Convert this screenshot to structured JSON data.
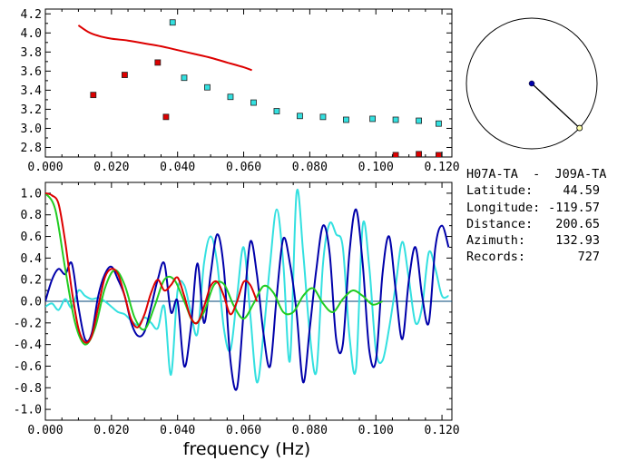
{
  "info": {
    "title": "H07A-TA  -  J09A-TA",
    "rows": [
      {
        "label": "Latitude:",
        "value": "44.59"
      },
      {
        "label": "Longitude:",
        "value": "-119.57"
      },
      {
        "label": "Distance:",
        "value": "200.65"
      },
      {
        "label": "Azimuth:",
        "value": "132.93"
      },
      {
        "label": "Records:",
        "value": "727"
      }
    ]
  },
  "colors": {
    "red": "#dd0000",
    "cyan": "#33e0e0",
    "blue": "#0000aa",
    "green": "#22cc22",
    "zero_line": "#004477"
  },
  "chart_data": [
    {
      "type": "scatter",
      "xlim": [
        0.0,
        0.123
      ],
      "ylim": [
        2.7,
        4.25
      ],
      "xticks": [
        "0.000",
        "0.020",
        "0.040",
        "0.060",
        "0.080",
        "0.100",
        "0.120"
      ],
      "yticks": [
        "2.8",
        "3.0",
        "3.2",
        "3.4",
        "3.6",
        "3.8",
        "4.0",
        "4.2"
      ],
      "series": [
        {
          "marker": "square",
          "color": "red",
          "x": [
            0.0145,
            0.024,
            0.034,
            0.0365,
            0.106,
            0.113,
            0.119
          ],
          "y": [
            3.35,
            3.56,
            3.69,
            3.12,
            2.72,
            2.73,
            2.72
          ]
        },
        {
          "marker": "square",
          "color": "cyan",
          "x": [
            0.0385,
            0.042,
            0.049,
            0.056,
            0.063,
            0.07,
            0.077,
            0.084,
            0.091,
            0.099,
            0.106,
            0.113,
            0.119
          ],
          "y": [
            4.11,
            3.53,
            3.43,
            3.33,
            3.27,
            3.18,
            3.13,
            3.12,
            3.09,
            3.1,
            3.09,
            3.08,
            3.05
          ]
        },
        {
          "marker": "line",
          "color": "red",
          "x": [
            0.01,
            0.013,
            0.016,
            0.02,
            0.025,
            0.03,
            0.035,
            0.04,
            0.045,
            0.05,
            0.055,
            0.06,
            0.0625
          ],
          "y": [
            4.08,
            4.01,
            3.97,
            3.94,
            3.92,
            3.89,
            3.86,
            3.82,
            3.78,
            3.74,
            3.69,
            3.64,
            3.61
          ]
        }
      ]
    },
    {
      "type": "line",
      "xlim": [
        0.0,
        0.123
      ],
      "ylim": [
        -1.1,
        1.1
      ],
      "xticks": [
        "0.000",
        "0.020",
        "0.040",
        "0.060",
        "0.080",
        "0.100",
        "0.120"
      ],
      "yticks": [
        "1.0",
        "0.8",
        "0.6",
        "0.4",
        "0.2",
        "0.0",
        "-0.2",
        "-0.4",
        "-0.6",
        "-0.8",
        "-1.0"
      ],
      "xlabel": "frequency (Hz)",
      "series": [
        {
          "color": "cyan",
          "x": [
            0.0,
            0.002,
            0.004,
            0.006,
            0.008,
            0.01,
            0.012,
            0.014,
            0.016,
            0.018,
            0.02,
            0.022,
            0.024,
            0.026,
            0.028,
            0.03,
            0.032,
            0.034,
            0.036,
            0.038,
            0.04,
            0.042,
            0.044,
            0.046,
            0.048,
            0.05,
            0.052,
            0.054,
            0.056,
            0.058,
            0.06,
            0.062,
            0.064,
            0.066,
            0.068,
            0.07,
            0.072,
            0.074,
            0.076,
            0.078,
            0.08,
            0.082,
            0.084,
            0.086,
            0.088,
            0.09,
            0.092,
            0.094,
            0.096,
            0.098,
            0.1,
            0.102,
            0.104,
            0.106,
            0.108,
            0.11,
            0.112,
            0.114,
            0.116,
            0.118,
            0.12,
            0.122
          ],
          "y": [
            -0.05,
            -0.02,
            -0.08,
            0.02,
            -0.06,
            0.1,
            0.05,
            0.02,
            0.03,
            0.0,
            -0.05,
            -0.1,
            -0.12,
            -0.18,
            -0.22,
            -0.15,
            -0.2,
            -0.25,
            -0.05,
            -0.68,
            0.1,
            0.15,
            -0.1,
            -0.3,
            0.35,
            0.6,
            0.35,
            -0.25,
            -0.45,
            0.05,
            0.5,
            -0.12,
            -0.75,
            -0.3,
            0.35,
            0.85,
            0.35,
            -0.55,
            1.0,
            0.45,
            -0.3,
            -0.65,
            0.35,
            0.72,
            0.62,
            0.5,
            -0.32,
            -0.62,
            0.7,
            0.32,
            -0.45,
            -0.55,
            -0.25,
            0.15,
            0.55,
            0.2,
            -0.2,
            -0.05,
            0.45,
            0.3,
            0.05,
            0.05
          ]
        },
        {
          "color": "blue",
          "x": [
            0.0,
            0.002,
            0.004,
            0.006,
            0.008,
            0.01,
            0.012,
            0.014,
            0.016,
            0.018,
            0.02,
            0.022,
            0.024,
            0.026,
            0.028,
            0.03,
            0.032,
            0.034,
            0.036,
            0.038,
            0.04,
            0.042,
            0.044,
            0.046,
            0.048,
            0.05,
            0.052,
            0.054,
            0.056,
            0.058,
            0.06,
            0.062,
            0.064,
            0.066,
            0.068,
            0.07,
            0.072,
            0.074,
            0.076,
            0.078,
            0.08,
            0.082,
            0.084,
            0.086,
            0.088,
            0.09,
            0.092,
            0.094,
            0.096,
            0.098,
            0.1,
            0.102,
            0.104,
            0.106,
            0.108,
            0.11,
            0.112,
            0.114,
            0.116,
            0.118,
            0.12,
            0.122
          ],
          "y": [
            0.0,
            0.2,
            0.3,
            0.25,
            0.35,
            -0.05,
            -0.35,
            -0.3,
            0.05,
            0.25,
            0.32,
            0.2,
            0.05,
            -0.2,
            -0.32,
            -0.28,
            -0.05,
            0.2,
            0.35,
            -0.1,
            0.0,
            -0.6,
            -0.25,
            0.35,
            -0.2,
            0.25,
            0.62,
            0.3,
            -0.55,
            -0.8,
            -0.1,
            0.55,
            0.25,
            -0.3,
            -0.6,
            0.05,
            0.58,
            0.35,
            -0.1,
            -0.75,
            -0.25,
            0.3,
            0.7,
            0.45,
            -0.35,
            -0.4,
            0.45,
            0.85,
            0.35,
            -0.45,
            -0.55,
            0.25,
            0.6,
            0.1,
            -0.35,
            0.2,
            0.5,
            0.05,
            -0.2,
            0.5,
            0.7,
            0.5
          ]
        },
        {
          "color": "green",
          "x": [
            0.0,
            0.003,
            0.006,
            0.009,
            0.012,
            0.015,
            0.018,
            0.021,
            0.024,
            0.027,
            0.03,
            0.033,
            0.036,
            0.039,
            0.042,
            0.045,
            0.048,
            0.051,
            0.054,
            0.057,
            0.06,
            0.063,
            0.066,
            0.069,
            0.072,
            0.075,
            0.078,
            0.081,
            0.084,
            0.087,
            0.09,
            0.093,
            0.096,
            0.099,
            0.102
          ],
          "y": [
            1.0,
            0.85,
            0.3,
            -0.2,
            -0.4,
            -0.25,
            0.12,
            0.29,
            0.15,
            -0.15,
            -0.26,
            -0.05,
            0.2,
            0.2,
            0.0,
            -0.2,
            -0.1,
            0.15,
            0.16,
            -0.04,
            -0.16,
            -0.02,
            0.14,
            0.08,
            -0.1,
            -0.1,
            0.05,
            0.12,
            -0.02,
            -0.1,
            0.02,
            0.1,
            0.05,
            -0.03,
            0.0
          ]
        },
        {
          "color": "red",
          "x": [
            0.0,
            0.002,
            0.004,
            0.006,
            0.008,
            0.01,
            0.012,
            0.014,
            0.016,
            0.018,
            0.02,
            0.022,
            0.024,
            0.026,
            0.028,
            0.03,
            0.032,
            0.034,
            0.036,
            0.038,
            0.04,
            0.042,
            0.044,
            0.046,
            0.048,
            0.05,
            0.052,
            0.054,
            0.056,
            0.058,
            0.06,
            0.062,
            0.064
          ],
          "y": [
            1.0,
            0.98,
            0.9,
            0.55,
            0.1,
            -0.25,
            -0.38,
            -0.32,
            -0.05,
            0.22,
            0.3,
            0.25,
            0.05,
            -0.17,
            -0.24,
            -0.12,
            0.08,
            0.2,
            0.1,
            0.15,
            0.22,
            0.05,
            -0.15,
            -0.2,
            -0.05,
            0.14,
            0.18,
            0.05,
            -0.12,
            0.0,
            0.18,
            0.15,
            0.0
          ]
        }
      ]
    },
    {
      "type": "polar",
      "azimuth_deg": 132.93
    }
  ]
}
